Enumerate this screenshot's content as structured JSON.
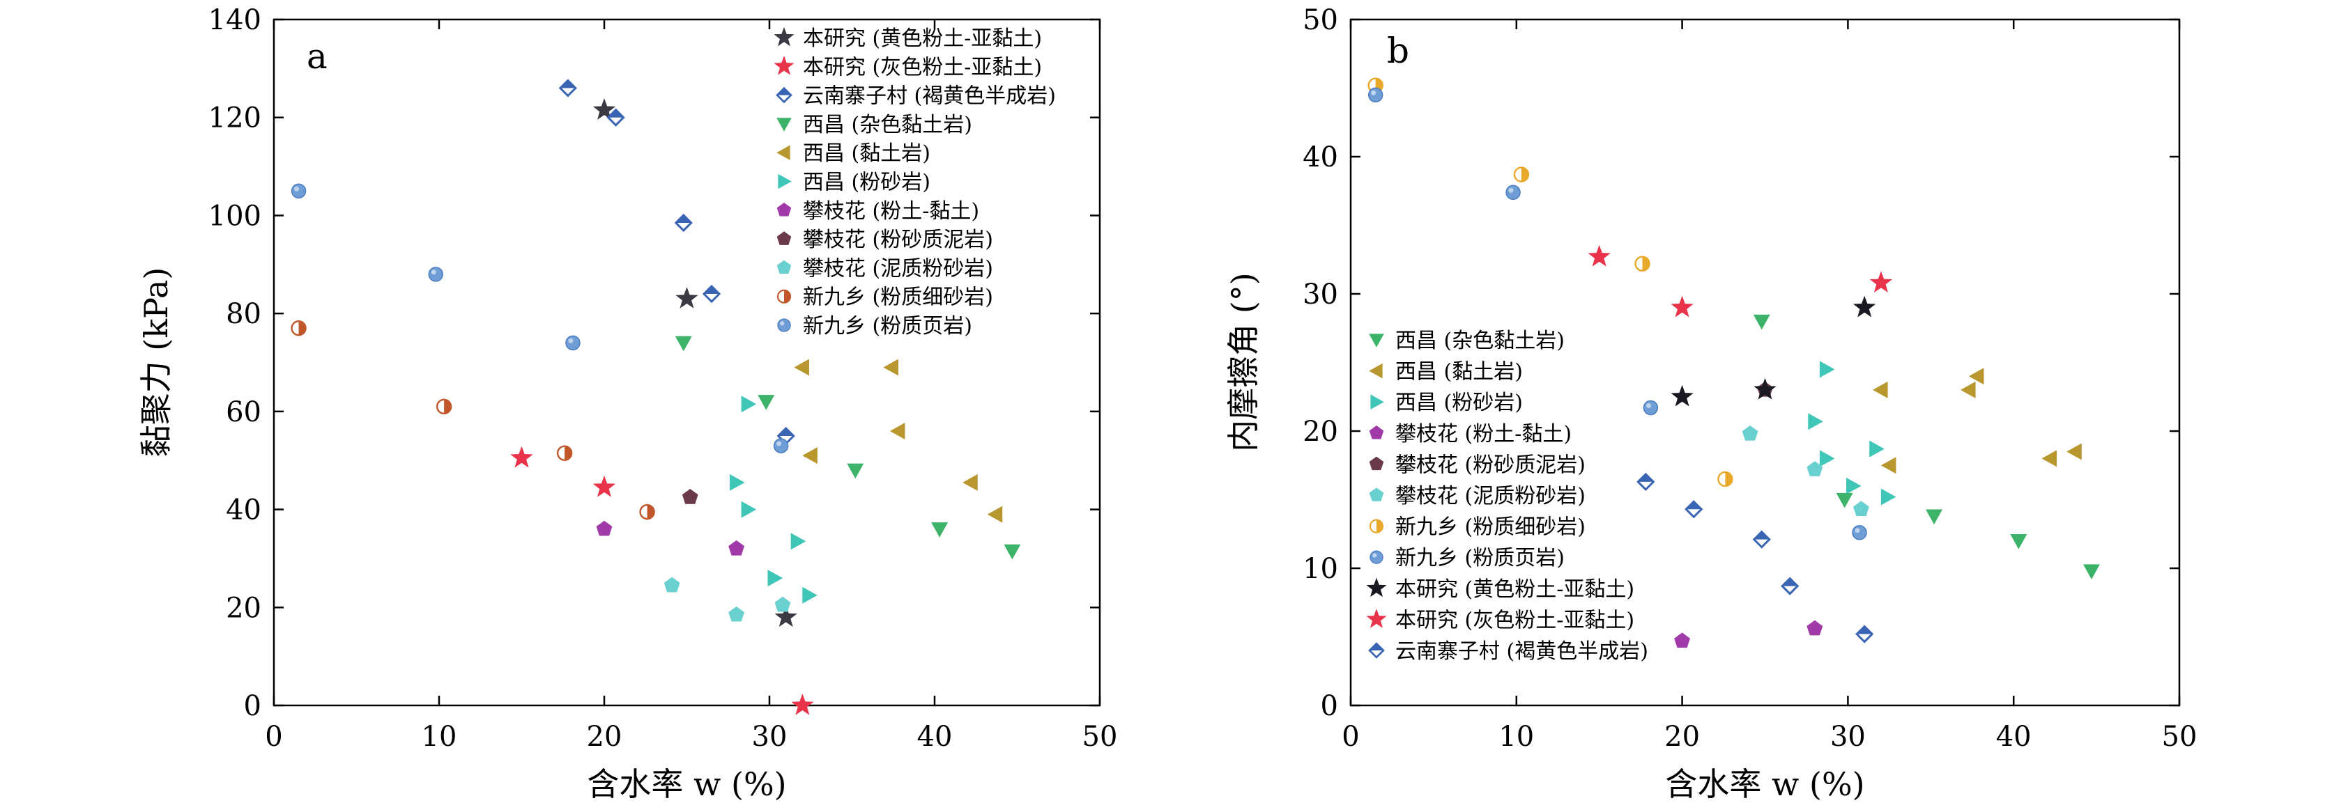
{
  "chart_data": [
    {
      "type": "scatter",
      "panel_label": "a",
      "xlabel": "含水率 w (%)",
      "ylabel": "黏聚力 (kPa)",
      "xlim": [
        0,
        50
      ],
      "ylim": [
        0,
        140
      ],
      "xticks": [
        "0",
        "10",
        "20",
        "30",
        "40",
        "50"
      ],
      "yticks": [
        "0",
        "20",
        "40",
        "60",
        "80",
        "100",
        "120",
        "140"
      ],
      "grid": false,
      "legend_position": "top-right",
      "legend_order": [
        "bys_yellow",
        "bys_grey",
        "yn",
        "xc_mixed",
        "xc_clay",
        "xc_silt",
        "pzh_silt_clay",
        "pzh_silty_mud",
        "pzh_mud_silt",
        "xjx_silty_fine",
        "xjx_silty_shale"
      ],
      "series": [
        {
          "key": "bys_yellow",
          "name": "本研究 (黄色粉土-亚黏土)",
          "marker": "star",
          "color": "#3a3a44",
          "points": [
            [
              20,
              121.5
            ],
            [
              25,
              83
            ],
            [
              31,
              18
            ]
          ]
        },
        {
          "key": "bys_grey",
          "name": "本研究 (灰色粉土-亚黏土)",
          "marker": "star",
          "color": "#e8334a",
          "points": [
            [
              15,
              50.5
            ],
            [
              20,
              44.5
            ],
            [
              32,
              0
            ]
          ]
        },
        {
          "key": "yn",
          "name": "云南寨子村 (褐黄色半成岩)",
          "marker": "diamond-half",
          "color": "#3a64b4",
          "points": [
            [
              17.8,
              126
            ],
            [
              20.7,
              120
            ],
            [
              24.8,
              98.5
            ],
            [
              26.5,
              84
            ],
            [
              31,
              55
            ]
          ]
        },
        {
          "key": "xc_mixed",
          "name": "西昌 (杂色黏土岩)",
          "marker": "triangle-down",
          "color": "#3db36a",
          "points": [
            [
              24.8,
              74
            ],
            [
              29.8,
              62
            ],
            [
              35.2,
              48
            ],
            [
              40.3,
              36
            ],
            [
              44.7,
              31.5
            ]
          ]
        },
        {
          "key": "xc_clay",
          "name": "西昌 (黏土岩)",
          "marker": "triangle-left",
          "color": "#b8972f",
          "points": [
            [
              32,
              69
            ],
            [
              37.4,
              69
            ],
            [
              32.5,
              51
            ],
            [
              37.8,
              56
            ],
            [
              42.2,
              45.5
            ],
            [
              43.7,
              39
            ]
          ]
        },
        {
          "key": "xc_silt",
          "name": "西昌 (粉砂岩)",
          "marker": "triangle-right",
          "color": "#3fc6b6",
          "points": [
            [
              28.7,
              61.5
            ],
            [
              28,
              45.5
            ],
            [
              28.7,
              40
            ],
            [
              31.7,
              33.5
            ],
            [
              30.3,
              26
            ],
            [
              32.4,
              22.5
            ]
          ]
        },
        {
          "key": "pzh_silt_clay",
          "name": "攀枝花 (粉土-黏土)",
          "marker": "pentagon",
          "color": "#a03aa8",
          "points": [
            [
              20,
              36
            ],
            [
              28,
              32
            ]
          ]
        },
        {
          "key": "pzh_silty_mud",
          "name": "攀枝花 (粉砂质泥岩)",
          "marker": "pentagon",
          "color": "#6b3a4a",
          "points": [
            [
              25.2,
              42.5
            ]
          ]
        },
        {
          "key": "pzh_mud_silt",
          "name": "攀枝花 (泥质粉砂岩)",
          "marker": "pentagon",
          "color": "#68d1cf",
          "points": [
            [
              24.1,
              24.5
            ],
            [
              28,
              18.5
            ],
            [
              30.8,
              20.5
            ]
          ]
        },
        {
          "key": "xjx_silty_fine",
          "name": "新九乡 (粉质细砂岩)",
          "marker": "circle-half",
          "color": "#c0562a",
          "points": [
            [
              1.5,
              77
            ],
            [
              10.3,
              61
            ],
            [
              17.6,
              51.5
            ],
            [
              22.6,
              39.5
            ]
          ]
        },
        {
          "key": "xjx_silty_shale",
          "name": "新九乡 (粉质页岩)",
          "marker": "circle",
          "color": "#6f9dd6",
          "points": [
            [
              1.5,
              105
            ],
            [
              9.8,
              88
            ],
            [
              18.1,
              74
            ],
            [
              30.7,
              53
            ]
          ]
        }
      ]
    },
    {
      "type": "scatter",
      "panel_label": "b",
      "xlabel": "含水率 w (%)",
      "ylabel": "内摩擦角 (°)",
      "xlim": [
        0,
        50
      ],
      "ylim": [
        0,
        50
      ],
      "xticks": [
        "0",
        "10",
        "20",
        "30",
        "40",
        "50"
      ],
      "yticks": [
        "0",
        "10",
        "20",
        "30",
        "40",
        "50"
      ],
      "grid": false,
      "legend_position": "bottom-left",
      "legend_order": [
        "xc_mixed",
        "xc_clay",
        "xc_silt",
        "pzh_silt_clay",
        "pzh_silty_mud",
        "pzh_mud_silt",
        "xjx_silty_fine",
        "xjx_silty_shale",
        "bys_yellow",
        "bys_grey",
        "yn"
      ],
      "series": [
        {
          "key": "xc_mixed",
          "name": "西昌 (杂色黏土岩)",
          "marker": "triangle-down",
          "color": "#3db36a",
          "points": [
            [
              24.8,
              28
            ],
            [
              29.8,
              15
            ],
            [
              35.2,
              13.8
            ],
            [
              40.3,
              12
            ],
            [
              44.7,
              9.8
            ]
          ]
        },
        {
          "key": "xc_clay",
          "name": "西昌 (黏土岩)",
          "marker": "triangle-left",
          "color": "#b8972f",
          "points": [
            [
              32,
              23
            ],
            [
              32.5,
              17.5
            ],
            [
              37.3,
              23
            ],
            [
              37.8,
              24
            ],
            [
              42.2,
              18
            ],
            [
              43.7,
              18.5
            ]
          ]
        },
        {
          "key": "xc_silt",
          "name": "西昌 (粉砂岩)",
          "marker": "triangle-right",
          "color": "#3fc6b6",
          "points": [
            [
              28.7,
              24.5
            ],
            [
              28,
              20.7
            ],
            [
              28.7,
              18
            ],
            [
              31.7,
              18.7
            ],
            [
              30.3,
              16
            ],
            [
              32.4,
              15.2
            ]
          ]
        },
        {
          "key": "pzh_silt_clay",
          "name": "攀枝花 (粉土-黏土)",
          "marker": "pentagon",
          "color": "#a03aa8",
          "points": [
            [
              20,
              4.7
            ],
            [
              28,
              5.6
            ]
          ]
        },
        {
          "key": "pzh_silty_mud",
          "name": "攀枝花 (粉砂质泥岩)",
          "marker": "pentagon",
          "color": "#6b3a4a",
          "points": [
            [
              25,
              23
            ]
          ]
        },
        {
          "key": "pzh_mud_silt",
          "name": "攀枝花 (泥质粉砂岩)",
          "marker": "pentagon",
          "color": "#68d1cf",
          "points": [
            [
              24.1,
              19.8
            ],
            [
              28,
              17.2
            ],
            [
              30.8,
              14.3
            ]
          ]
        },
        {
          "key": "xjx_silty_fine",
          "name": "新九乡 (粉质细砂岩)",
          "marker": "circle-half",
          "color": "#e8a82a",
          "points": [
            [
              1.5,
              45.2
            ],
            [
              10.3,
              38.7
            ],
            [
              17.6,
              32.2
            ],
            [
              22.6,
              16.5
            ]
          ]
        },
        {
          "key": "xjx_silty_shale",
          "name": "新九乡 (粉质页岩)",
          "marker": "circle",
          "color": "#6f9dd6",
          "points": [
            [
              1.5,
              44.5
            ],
            [
              9.8,
              37.4
            ],
            [
              18.1,
              21.7
            ],
            [
              30.7,
              12.6
            ]
          ]
        },
        {
          "key": "bys_yellow",
          "name": "本研究 (黄色粉土-亚黏土)",
          "marker": "star",
          "color": "#1a1a22",
          "points": [
            [
              20,
              22.5
            ],
            [
              25,
              23
            ],
            [
              31,
              29
            ]
          ]
        },
        {
          "key": "bys_grey",
          "name": "本研究 (灰色粉土-亚黏土)",
          "marker": "star",
          "color": "#e8334a",
          "points": [
            [
              15,
              32.7
            ],
            [
              20,
              29
            ],
            [
              32,
              30.8
            ]
          ]
        },
        {
          "key": "yn",
          "name": "云南寨子村 (褐黄色半成岩)",
          "marker": "diamond-half",
          "color": "#3a64b4",
          "points": [
            [
              17.8,
              16.3
            ],
            [
              20.7,
              14.3
            ],
            [
              24.8,
              12.1
            ],
            [
              26.5,
              8.7
            ],
            [
              31,
              5.2
            ]
          ]
        }
      ]
    }
  ]
}
